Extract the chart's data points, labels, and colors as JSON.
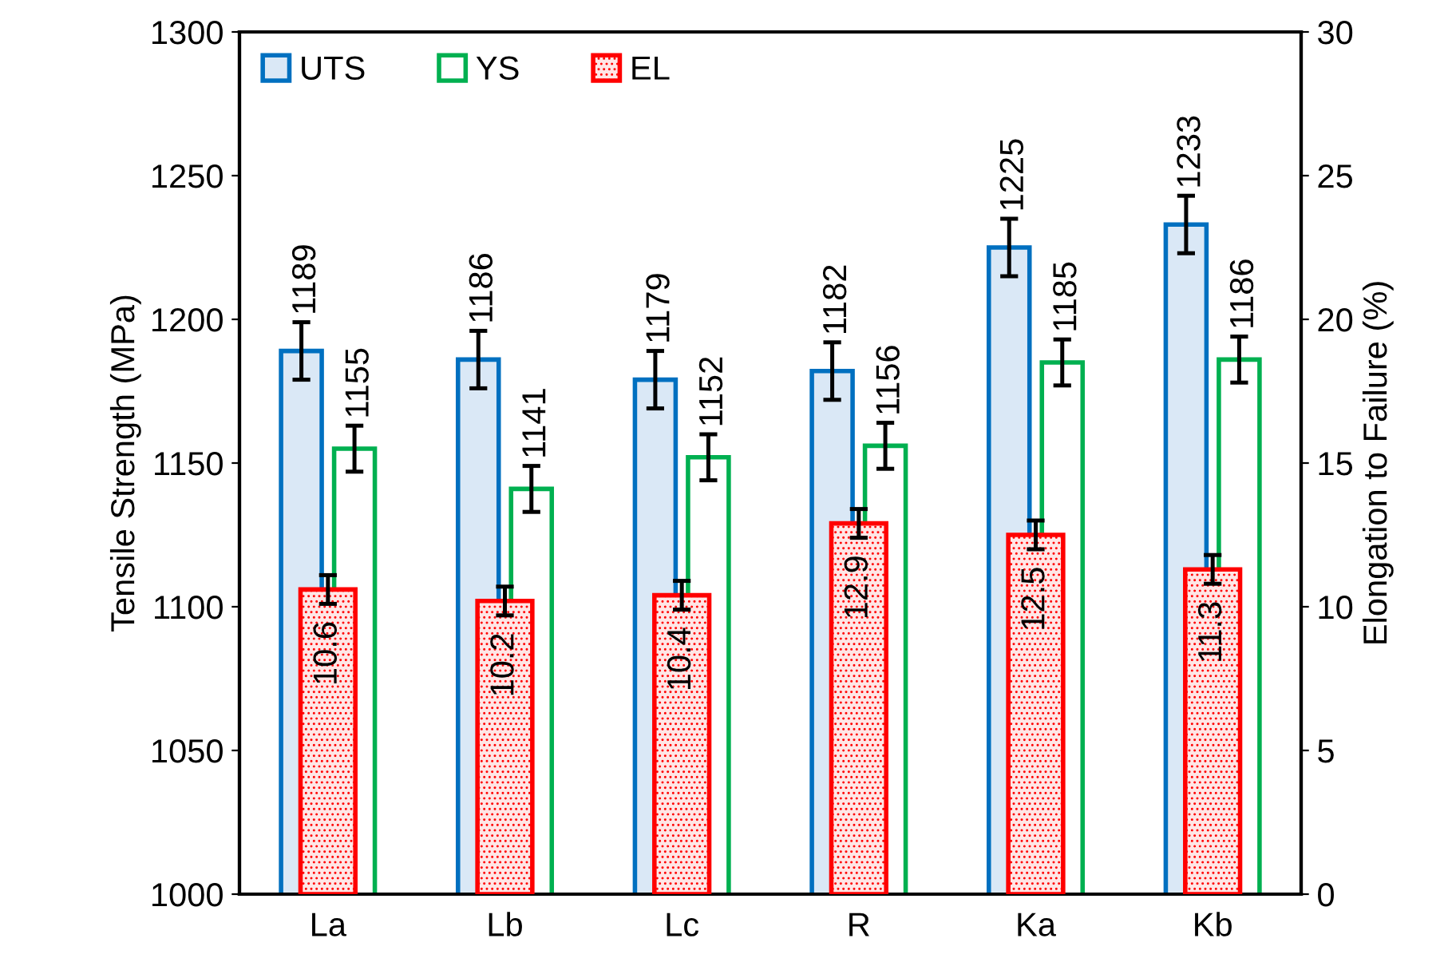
{
  "chart_data": {
    "type": "bar",
    "ylabel": "Tensile Strength (MPa)",
    "y2label": "Elongation to Failure (%)",
    "categories": [
      "La",
      "Lb",
      "Lc",
      "R",
      "Ka",
      "Kb"
    ],
    "series": [
      {
        "name": "UTS",
        "color": "#0070c0",
        "values": [
          1189,
          1186,
          1179,
          1182,
          1225,
          1233
        ],
        "errors": [
          10,
          10,
          10,
          10,
          10,
          10
        ]
      },
      {
        "name": "YS",
        "color": "#00b050",
        "values": [
          1155,
          1141,
          1152,
          1156,
          1185,
          1186
        ],
        "errors": [
          8,
          8,
          8,
          8,
          8,
          8
        ]
      },
      {
        "name": "EL",
        "color": "#ff0000",
        "axis": "y2",
        "values": [
          10.6,
          10.2,
          10.4,
          12.9,
          12.5,
          11.3
        ],
        "errors": [
          0.5,
          0.5,
          0.5,
          0.5,
          0.5,
          0.5
        ]
      }
    ],
    "ylim": [
      1000,
      1300
    ],
    "yticks": [
      1000,
      1050,
      1100,
      1150,
      1200,
      1250,
      1300
    ],
    "y2lim": [
      0,
      30
    ],
    "y2ticks": [
      0,
      5,
      10,
      15,
      20,
      25,
      30
    ],
    "data_labels": true,
    "legend": "top left",
    "grid": false
  }
}
